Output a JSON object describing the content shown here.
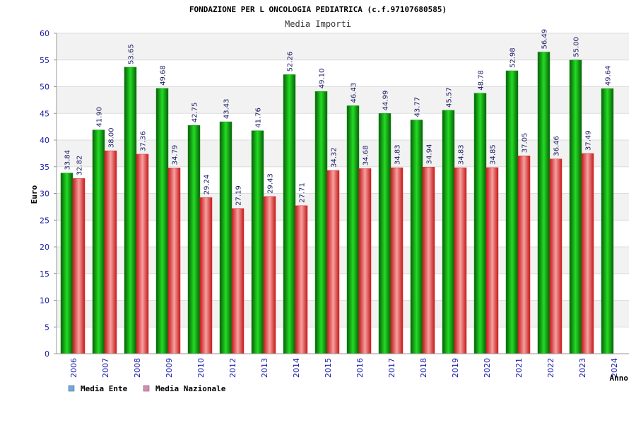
{
  "chart_data": {
    "type": "bar",
    "title": "FONDAZIONE PER L ONCOLOGIA PEDIATRICA (c.f.97107680585)",
    "subtitle": "Media Importi",
    "xlabel": "Anno",
    "ylabel": "Euro",
    "ylim": [
      0,
      60
    ],
    "ytick_step": 5,
    "grid": true,
    "legend_position": "bottom-left",
    "categories": [
      "2006",
      "2007",
      "2008",
      "2009",
      "2010",
      "2012",
      "2013",
      "2014",
      "2015",
      "2016",
      "2017",
      "2018",
      "2019",
      "2020",
      "2021",
      "2022",
      "2023",
      "2024"
    ],
    "series": [
      {
        "name": "Media Ente",
        "bar_color": "#16a516",
        "legend_color": "#6fa8e6",
        "values": [
          33.84,
          41.9,
          53.65,
          49.68,
          42.75,
          43.43,
          41.76,
          52.26,
          49.1,
          46.43,
          44.99,
          43.77,
          45.57,
          48.78,
          52.98,
          56.49,
          55.0,
          49.64
        ],
        "labels": [
          "33.84",
          "41.90",
          "53.65",
          "49.68",
          "42.75",
          "43.43",
          "41.76",
          "52.26",
          "49.10",
          "46.43",
          "44.99",
          "43.77",
          "45.57",
          "48.78",
          "52.98",
          "56.49",
          "55.00",
          "49.64"
        ]
      },
      {
        "name": "Media Nazionale",
        "bar_color": "#e02a2a",
        "legend_color": "#d98cb3",
        "values": [
          32.82,
          38.0,
          37.36,
          34.79,
          29.24,
          27.19,
          29.43,
          27.71,
          34.32,
          34.68,
          34.83,
          34.94,
          34.83,
          34.85,
          37.05,
          36.46,
          37.49,
          null
        ],
        "labels": [
          "32.82",
          "38.00",
          "37.36",
          "34.79",
          "29.24",
          "27.19",
          "29.43",
          "27.71",
          "34.32",
          "34.68",
          "34.83",
          "34.94",
          "34.83",
          "34.85",
          "37.05",
          "36.46",
          "37.49",
          null
        ]
      }
    ]
  }
}
